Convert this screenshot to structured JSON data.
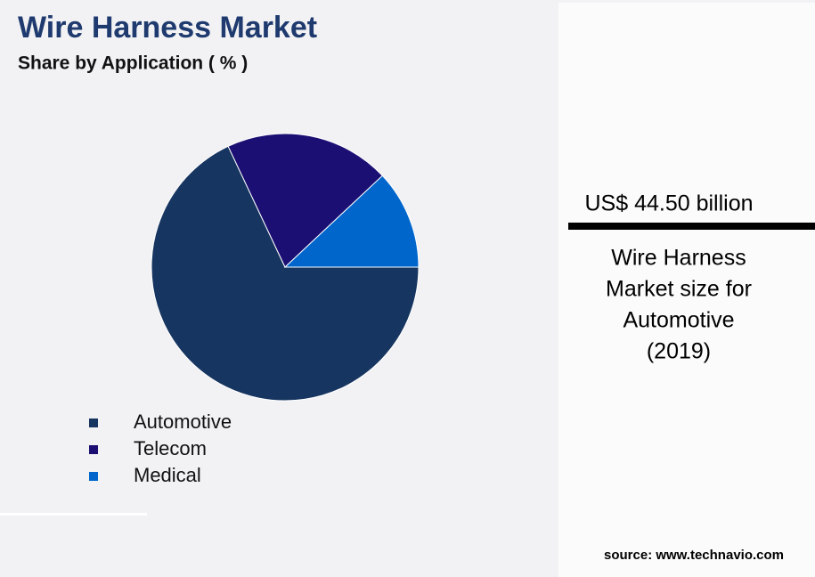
{
  "chart_data": {
    "type": "pie",
    "title": "Wire Harness Market",
    "subtitle": "Share by Application ( % )",
    "categories": [
      "Automotive",
      "Telecom",
      "Medical"
    ],
    "values": [
      68,
      20,
      12
    ],
    "colors": [
      "#163560",
      "#1b0f73",
      "#0066cc"
    ]
  },
  "panel": {
    "headline": "US$ 44.50 billion",
    "caption_lines": [
      "Wire Harness",
      "Market size for",
      "Automotive",
      "(2019)"
    ],
    "source": "source: www.technavio.com"
  }
}
